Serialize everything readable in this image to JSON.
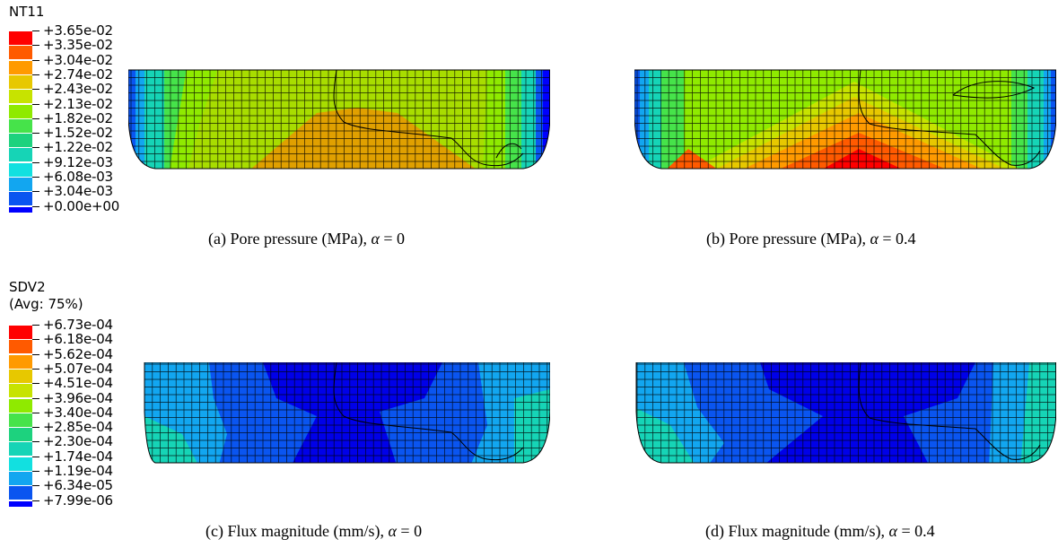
{
  "legend_top": {
    "title": "NT11",
    "labels": [
      "+3.65e-02",
      "+3.35e-02",
      "+3.04e-02",
      "+2.74e-02",
      "+2.43e-02",
      "+2.13e-02",
      "+1.82e-02",
      "+1.52e-02",
      "+1.22e-02",
      "+9.12e-03",
      "+6.08e-03",
      "+3.04e-03",
      "+0.00e+00"
    ]
  },
  "legend_bottom": {
    "title": "SDV2",
    "subtitle": "(Avg: 75%)",
    "labels": [
      "+6.73e-04",
      "+6.18e-04",
      "+5.62e-04",
      "+5.07e-04",
      "+4.51e-04",
      "+3.96e-04",
      "+3.40e-04",
      "+2.85e-04",
      "+2.30e-04",
      "+1.74e-04",
      "+1.19e-04",
      "+6.34e-05",
      "+7.99e-06"
    ]
  },
  "colormap": [
    "#ff0000",
    "#ff5a00",
    "#ff9a00",
    "#e7c800",
    "#c7e300",
    "#8fea00",
    "#46e34a",
    "#1dd27e",
    "#16d4b6",
    "#12e0e0",
    "#12a6f0",
    "#0a55f0",
    "#0000ff"
  ],
  "captions": {
    "a": {
      "text": "(a) Pore pressure (MPa), ",
      "alpha": "α",
      "rest": " = 0"
    },
    "b": {
      "text": "(b) Pore pressure (MPa), ",
      "alpha": "α",
      "rest": " = 0.4"
    },
    "c": {
      "text": "(c) Flux magnitude (mm/s), ",
      "alpha": "α",
      "rest": " = 0"
    },
    "d": {
      "text": "(d) Flux magnitude (mm/s), ",
      "alpha": "α",
      "rest": " = 0.4"
    }
  }
}
